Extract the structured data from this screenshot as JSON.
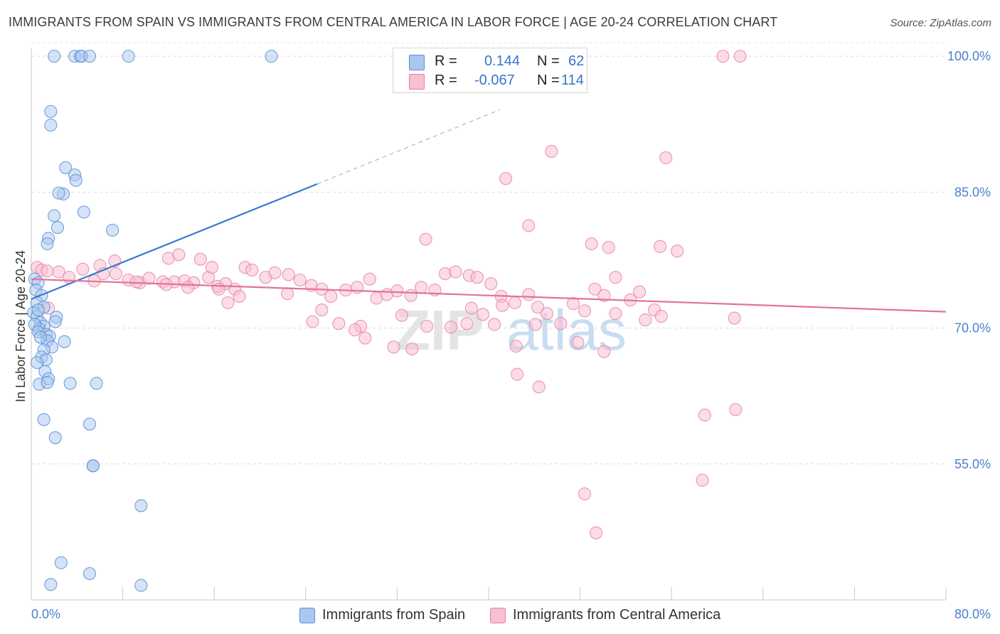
{
  "title": "IMMIGRANTS FROM SPAIN VS IMMIGRANTS FROM CENTRAL AMERICA IN LABOR FORCE | AGE 20-24 CORRELATION CHART",
  "source": "Source: ZipAtlas.com",
  "watermark": {
    "zip": "ZIP",
    "atlas": "atlas"
  },
  "legend": {
    "r_label": "R =",
    "n_label": "N =",
    "rows": [
      {
        "r": "0.144",
        "n": "62",
        "color": "#a9c8f0",
        "border": "#5b8fd6"
      },
      {
        "r": "-0.067",
        "n": "114",
        "color": "#f9c0d2",
        "border": "#e37fa2"
      }
    ]
  },
  "bottom_legend": [
    {
      "label": "Immigrants from Spain",
      "color": "#a9c8f0",
      "border": "#5b8fd6"
    },
    {
      "label": "Immigrants from Central America",
      "color": "#f9c0d2",
      "border": "#e37fa2"
    }
  ],
  "chart_data": {
    "type": "scatter",
    "title": "IMMIGRANTS FROM SPAIN VS IMMIGRANTS FROM CENTRAL AMERICA IN LABOR FORCE | AGE 20-24 CORRELATION CHART",
    "xlabel": "",
    "ylabel": "In Labor Force | Age 20-24",
    "xlim": [
      0,
      80
    ],
    "ylim": [
      40,
      101.5
    ],
    "x_tick_labels": [
      "0.0%",
      "80.0%"
    ],
    "y_ticks": [
      55,
      70,
      85,
      100
    ],
    "y_tick_labels": [
      "55.0%",
      "70.0%",
      "85.0%",
      "100.0%"
    ],
    "grid": "horizontal dashed",
    "legend_position": "top-center",
    "colors": {
      "spain": "#5b8fd6",
      "spain_fill": "#a9c8f0",
      "ca": "#e37fa2",
      "ca_fill": "#f9c0d2",
      "spain_line": "#3a78d0",
      "ca_line": "#e2729b"
    },
    "series": [
      {
        "name": "Immigrants from Spain",
        "trend": {
          "x": [
            0,
            25
          ],
          "y": [
            73.2,
            85.9
          ],
          "extended_to": [
            41,
            94.1
          ]
        },
        "points": [
          [
            2.0,
            100.0
          ],
          [
            3.8,
            100.0
          ],
          [
            4.3,
            100.0
          ],
          [
            4.4,
            100.0
          ],
          [
            5.1,
            100.0
          ],
          [
            8.5,
            100.0
          ],
          [
            21.0,
            100.0
          ],
          [
            1.7,
            93.9
          ],
          [
            1.7,
            92.4
          ],
          [
            3.0,
            87.7
          ],
          [
            3.8,
            86.9
          ],
          [
            3.9,
            86.3
          ],
          [
            2.8,
            84.8
          ],
          [
            2.4,
            84.9
          ],
          [
            4.6,
            82.8
          ],
          [
            2.0,
            82.4
          ],
          [
            2.3,
            81.1
          ],
          [
            7.1,
            80.8
          ],
          [
            1.5,
            79.9
          ],
          [
            1.4,
            79.3
          ],
          [
            0.3,
            75.4
          ],
          [
            0.6,
            75.0
          ],
          [
            0.4,
            74.2
          ],
          [
            0.9,
            73.6
          ],
          [
            0.5,
            72.8
          ],
          [
            1.1,
            72.3
          ],
          [
            0.2,
            71.7
          ],
          [
            0.5,
            71.3
          ],
          [
            2.2,
            71.2
          ],
          [
            2.1,
            70.7
          ],
          [
            0.8,
            70.6
          ],
          [
            1.1,
            70.2
          ],
          [
            0.7,
            69.9
          ],
          [
            0.3,
            70.4
          ],
          [
            0.6,
            69.6
          ],
          [
            1.3,
            69.3
          ],
          [
            1.6,
            69.1
          ],
          [
            1.4,
            68.6
          ],
          [
            0.8,
            69.0
          ],
          [
            2.9,
            68.5
          ],
          [
            1.8,
            67.9
          ],
          [
            1.1,
            67.6
          ],
          [
            0.9,
            66.8
          ],
          [
            1.3,
            66.5
          ],
          [
            0.5,
            66.2
          ],
          [
            1.2,
            65.2
          ],
          [
            1.5,
            64.4
          ],
          [
            0.7,
            63.8
          ],
          [
            1.4,
            64.0
          ],
          [
            3.4,
            63.9
          ],
          [
            5.7,
            63.9
          ],
          [
            1.1,
            59.9
          ],
          [
            5.1,
            59.4
          ],
          [
            2.1,
            57.9
          ],
          [
            5.4,
            54.8
          ],
          [
            5.4,
            54.8
          ],
          [
            9.6,
            50.4
          ],
          [
            2.6,
            44.1
          ],
          [
            5.1,
            42.9
          ],
          [
            1.7,
            41.7
          ],
          [
            9.6,
            41.6
          ],
          [
            0.6,
            72.0
          ]
        ]
      },
      {
        "name": "Immigrants from Central America",
        "trend": {
          "x": [
            0,
            80
          ],
          "y": [
            75.4,
            71.8
          ]
        },
        "points": [
          [
            47.5,
            100.0
          ],
          [
            60.5,
            100.0
          ],
          [
            62.0,
            100.0
          ],
          [
            45.5,
            89.5
          ],
          [
            55.5,
            88.8
          ],
          [
            41.5,
            86.5
          ],
          [
            43.5,
            81.3
          ],
          [
            34.5,
            79.8
          ],
          [
            49.0,
            79.3
          ],
          [
            50.5,
            78.9
          ],
          [
            55.0,
            79.0
          ],
          [
            56.5,
            78.5
          ],
          [
            0.5,
            76.7
          ],
          [
            0.9,
            76.4
          ],
          [
            1.4,
            76.3
          ],
          [
            2.4,
            76.2
          ],
          [
            4.5,
            76.5
          ],
          [
            6.0,
            76.9
          ],
          [
            7.3,
            77.4
          ],
          [
            6.3,
            76.0
          ],
          [
            7.4,
            76.0
          ],
          [
            8.5,
            75.3
          ],
          [
            9.5,
            75.0
          ],
          [
            10.3,
            75.5
          ],
          [
            11.5,
            75.1
          ],
          [
            12.5,
            75.1
          ],
          [
            13.4,
            75.2
          ],
          [
            14.2,
            75.0
          ],
          [
            15.5,
            75.6
          ],
          [
            16.3,
            74.6
          ],
          [
            12.0,
            77.7
          ],
          [
            12.9,
            78.1
          ],
          [
            14.8,
            77.6
          ],
          [
            15.8,
            76.7
          ],
          [
            17.0,
            74.9
          ],
          [
            17.8,
            74.3
          ],
          [
            18.7,
            76.7
          ],
          [
            19.3,
            76.4
          ],
          [
            20.5,
            75.6
          ],
          [
            21.3,
            76.1
          ],
          [
            22.5,
            75.9
          ],
          [
            23.5,
            75.3
          ],
          [
            24.5,
            74.7
          ],
          [
            25.4,
            74.3
          ],
          [
            26.2,
            73.5
          ],
          [
            27.5,
            74.2
          ],
          [
            28.5,
            74.5
          ],
          [
            29.6,
            75.4
          ],
          [
            30.2,
            73.3
          ],
          [
            31.1,
            73.7
          ],
          [
            32.0,
            74.1
          ],
          [
            33.2,
            73.6
          ],
          [
            34.1,
            74.5
          ],
          [
            35.3,
            74.2
          ],
          [
            36.2,
            76.0
          ],
          [
            37.1,
            76.2
          ],
          [
            38.3,
            75.8
          ],
          [
            39.0,
            75.6
          ],
          [
            40.2,
            74.9
          ],
          [
            41.1,
            73.5
          ],
          [
            38.5,
            72.2
          ],
          [
            39.5,
            71.5
          ],
          [
            40.5,
            70.4
          ],
          [
            41.2,
            72.5
          ],
          [
            42.3,
            72.8
          ],
          [
            43.5,
            73.7
          ],
          [
            44.3,
            72.3
          ],
          [
            45.1,
            71.6
          ],
          [
            46.3,
            70.5
          ],
          [
            47.4,
            72.7
          ],
          [
            48.4,
            71.9
          ],
          [
            49.3,
            74.3
          ],
          [
            50.1,
            73.6
          ],
          [
            51.1,
            75.6
          ],
          [
            52.4,
            73.1
          ],
          [
            53.2,
            74.0
          ],
          [
            54.5,
            72.0
          ],
          [
            55.1,
            71.3
          ],
          [
            1.5,
            72.2
          ],
          [
            3.3,
            75.6
          ],
          [
            5.5,
            75.2
          ],
          [
            9.2,
            75.1
          ],
          [
            11.8,
            74.8
          ],
          [
            13.7,
            74.5
          ],
          [
            18.2,
            73.5
          ],
          [
            22.4,
            73.8
          ],
          [
            24.6,
            70.7
          ],
          [
            25.4,
            72.0
          ],
          [
            26.9,
            70.5
          ],
          [
            28.8,
            70.2
          ],
          [
            29.2,
            68.9
          ],
          [
            31.7,
            67.9
          ],
          [
            33.3,
            67.7
          ],
          [
            34.6,
            70.2
          ],
          [
            36.7,
            70.1
          ],
          [
            38.1,
            70.5
          ],
          [
            42.4,
            68.0
          ],
          [
            44.1,
            70.4
          ],
          [
            47.8,
            68.4
          ],
          [
            50.1,
            67.4
          ],
          [
            51.1,
            71.6
          ],
          [
            53.7,
            70.9
          ],
          [
            61.5,
            71.1
          ],
          [
            42.5,
            64.9
          ],
          [
            44.4,
            63.5
          ],
          [
            58.9,
            60.4
          ],
          [
            61.6,
            61.0
          ],
          [
            48.4,
            51.7
          ],
          [
            58.7,
            53.2
          ],
          [
            49.4,
            47.4
          ],
          [
            17.2,
            72.8
          ],
          [
            28.3,
            69.8
          ],
          [
            32.4,
            71.4
          ],
          [
            16.4,
            74.3
          ]
        ]
      }
    ]
  }
}
